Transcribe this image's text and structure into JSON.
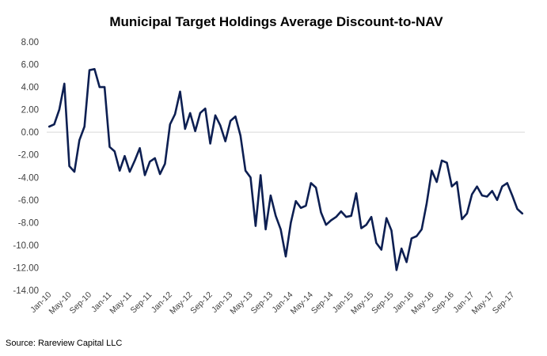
{
  "chart_data": {
    "type": "line",
    "title": "Municipal Target Holdings Average Discount-to-NAV",
    "xlabel": "",
    "ylabel": "",
    "ylim": [
      -14,
      8
    ],
    "y_ticks": [
      "8.00",
      "6.00",
      "4.00",
      "2.00",
      "0.00",
      "-2.00",
      "-4.00",
      "-6.00",
      "-8.00",
      "-10.00",
      "-12.00",
      "-14.00"
    ],
    "x_ticks": [
      "Jan-10",
      "May-10",
      "Sep-10",
      "Jan-11",
      "May-11",
      "Sep-11",
      "Jan-12",
      "May-12",
      "Sep-12",
      "Jan-13",
      "May-13",
      "Sep-13",
      "Jan-14",
      "May-14",
      "Sep-14",
      "Jan-15",
      "May-15",
      "Sep-15",
      "Jan-16",
      "May-16",
      "Sep-16",
      "Jan-17",
      "May-17",
      "Sep-17"
    ],
    "grid": false,
    "legend": "none",
    "line_color": "#0d1f52",
    "series": [
      {
        "values": [
          0.5,
          0.7,
          2.0,
          4.3,
          -3.0,
          -3.5,
          -0.7,
          0.5,
          5.5,
          5.6,
          4.0,
          4.0,
          -1.3,
          -1.7,
          -3.4,
          -2.1,
          -3.5,
          -2.5,
          -1.4,
          -3.8,
          -2.6,
          -2.3,
          -3.7,
          -2.8,
          0.7,
          1.6,
          3.6,
          0.3,
          1.7,
          0.1,
          1.7,
          2.1,
          -1.0,
          1.5,
          0.6,
          -0.8,
          1.0,
          1.4,
          -0.3,
          -3.4,
          -4.0,
          -8.3,
          -3.8,
          -8.6,
          -5.6,
          -7.4,
          -8.6,
          -11.0,
          -8.0,
          -6.1,
          -6.7,
          -6.5,
          -4.5,
          -4.9,
          -7.1,
          -8.2,
          -7.8,
          -7.5,
          -7.0,
          -7.5,
          -7.4,
          -5.4,
          -8.5,
          -8.2,
          -7.5,
          -9.8,
          -10.4,
          -7.6,
          -8.7,
          -12.2,
          -10.3,
          -11.5,
          -9.4,
          -9.2,
          -8.6,
          -6.3,
          -3.4,
          -4.4,
          -2.5,
          -2.7,
          -4.8,
          -4.4,
          -7.7,
          -7.2,
          -5.5,
          -4.8,
          -5.6,
          -5.7,
          -5.2,
          -6.0,
          -4.8,
          -4.5,
          -5.6,
          -6.8,
          -7.2
        ]
      }
    ]
  },
  "source": "Source: Rareview Capital LLC"
}
